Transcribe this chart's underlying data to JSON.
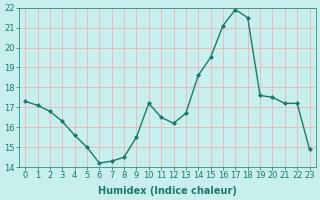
{
  "x": [
    0,
    1,
    2,
    3,
    4,
    5,
    6,
    7,
    8,
    9,
    10,
    11,
    12,
    13,
    14,
    15,
    16,
    17,
    18,
    19,
    20,
    21,
    22,
    23
  ],
  "y": [
    17.3,
    17.1,
    16.8,
    16.3,
    15.6,
    15.0,
    14.2,
    14.3,
    14.5,
    15.5,
    17.2,
    16.5,
    16.2,
    16.7,
    18.6,
    19.5,
    21.1,
    21.9,
    21.5,
    17.6,
    17.5,
    17.2,
    17.2,
    14.9
  ],
  "line_color": "#1a7a6a",
  "marker": "D",
  "marker_size": 2.0,
  "bg_color": "#c8eeee",
  "grid_color": "#e8b8b8",
  "xlabel": "Humidex (Indice chaleur)",
  "ylim": [
    14,
    22
  ],
  "xlim": [
    -0.5,
    23.5
  ],
  "yticks": [
    14,
    15,
    16,
    17,
    18,
    19,
    20,
    21,
    22
  ],
  "xticks": [
    0,
    1,
    2,
    3,
    4,
    5,
    6,
    7,
    8,
    9,
    10,
    11,
    12,
    13,
    14,
    15,
    16,
    17,
    18,
    19,
    20,
    21,
    22,
    23
  ],
  "xlabel_fontsize": 7,
  "tick_fontsize": 6,
  "line_width": 1.0,
  "title_color": "#1a7a6a"
}
